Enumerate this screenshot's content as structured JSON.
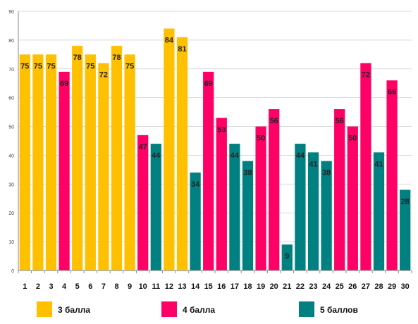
{
  "chart_data": {
    "type": "bar",
    "categories": [
      "1",
      "2",
      "3",
      "4",
      "5",
      "6",
      "7",
      "8",
      "9",
      "10",
      "11",
      "12",
      "13",
      "14",
      "15",
      "16",
      "17",
      "18",
      "19",
      "20",
      "21",
      "22",
      "23",
      "24",
      "25",
      "26",
      "27",
      "28",
      "29",
      "30"
    ],
    "values": [
      75,
      75,
      75,
      69,
      78,
      75,
      72,
      78,
      75,
      47,
      44,
      84,
      81,
      34,
      69,
      53,
      44,
      38,
      50,
      56,
      9,
      44,
      41,
      38,
      56,
      50,
      72,
      41,
      66,
      28
    ],
    "groups": [
      "3",
      "3",
      "3",
      "4",
      "3",
      "3",
      "3",
      "3",
      "3",
      "4",
      "5",
      "3",
      "3",
      "5",
      "4",
      "4",
      "5",
      "5",
      "4",
      "4",
      "5",
      "5",
      "5",
      "5",
      "4",
      "4",
      "4",
      "5",
      "4",
      "5"
    ],
    "series": [
      {
        "key": "3",
        "name": "3 балла",
        "color": "#FFC000"
      },
      {
        "key": "4",
        "name": "4 балла",
        "color": "#FF0066"
      },
      {
        "key": "5",
        "name": "5 баллов",
        "color": "#008080"
      }
    ],
    "ylim": [
      0,
      90
    ],
    "yticks": [
      "0",
      "10",
      "20",
      "30",
      "40",
      "50",
      "60",
      "70",
      "80",
      "90"
    ],
    "grid": true,
    "legend": "bottom"
  }
}
